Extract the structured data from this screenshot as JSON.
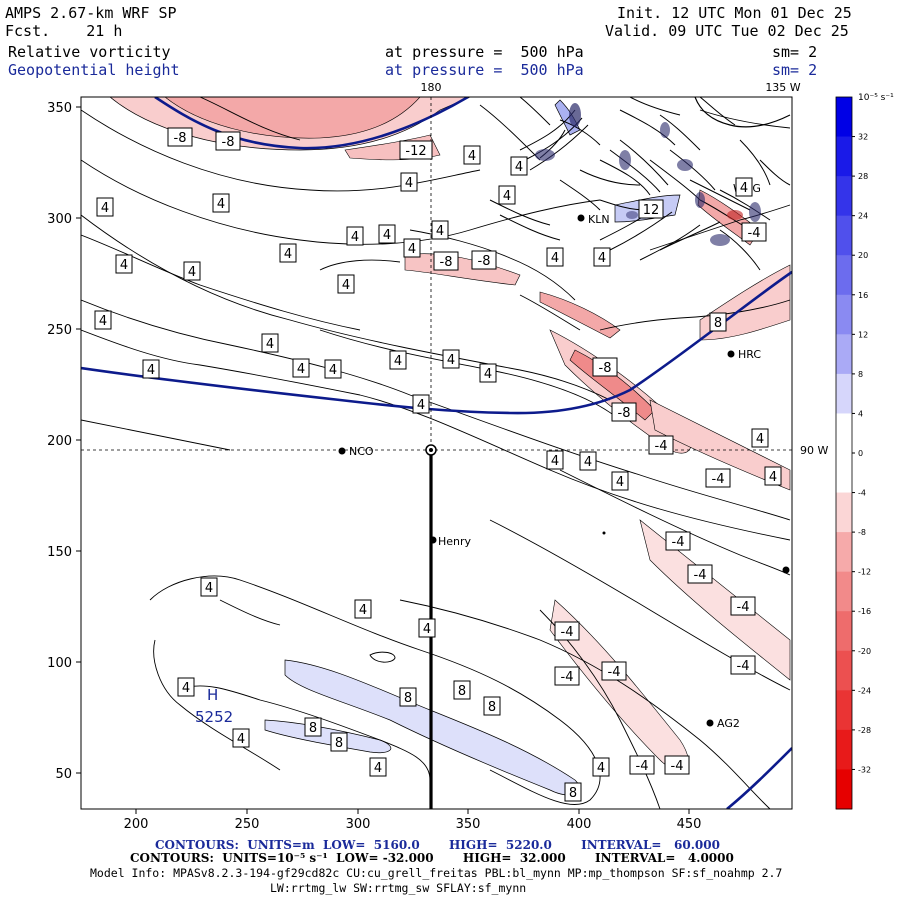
{
  "header": {
    "model": "AMPS 2.67-km WRF SP",
    "forecast": "Fcst.    21 h",
    "init": "Init. 12 UTC Mon 01 Dec 25",
    "valid": "Valid. 09 UTC Tue 02 Dec 25",
    "field1_name": "Relative vorticity",
    "field1_level": "at pressure =  500 hPa",
    "field1_smooth": "sm= 2",
    "field2_name": "Geopotential height",
    "field2_level": "at pressure =  500 hPa",
    "field2_smooth": "sm= 2"
  },
  "map": {
    "lon_top_label": "180",
    "lon_top_right_label": "135 W",
    "lon_right_label": "90 W",
    "x_ticks": [
      "200",
      "250",
      "300",
      "350",
      "400",
      "450"
    ],
    "y_ticks": [
      "350",
      "300",
      "250",
      "200",
      "150",
      "100",
      "50"
    ],
    "stations": [
      {
        "name": "KLN"
      },
      {
        "name": "HRC"
      },
      {
        "name": "NCO"
      },
      {
        "name": "Henry"
      },
      {
        "name": "AG2"
      },
      {
        "name": "WDG"
      }
    ],
    "high_label": "H",
    "high_value": "5252",
    "contour_labels": [
      "4",
      "-8",
      "-12",
      "8",
      "-4",
      "12"
    ],
    "line_colors": {
      "height": "#0d1b8c",
      "vorticity": "#000000"
    }
  },
  "colorbar": {
    "units": "10⁻⁵ s⁻¹",
    "ticks": [
      "32",
      "28",
      "24",
      "20",
      "16",
      "12",
      "8",
      "4",
      "0",
      "-4",
      "-8",
      "-12",
      "-16",
      "-20",
      "-24",
      "-28",
      "-32"
    ],
    "colors": [
      "#0000e6",
      "#1a1ae8",
      "#3434ea",
      "#5050ec",
      "#6c6cee",
      "#8a8af2",
      "#aaaaf6",
      "#d6d6fb",
      "#ffffff",
      "#ffffff",
      "#fbd6d6",
      "#f6aaaa",
      "#f28a8a",
      "#ee6c6c",
      "#ec5050",
      "#ea3434",
      "#e81a1a",
      "#e60000"
    ]
  },
  "footer": {
    "line1_prefix": "CONTOURS:  UNITS=m  LOW=  5160.0",
    "line1_high": "HIGH=  5220.0",
    "line1_interval": "INTERVAL=   60.000",
    "line2_prefix": "CONTOURS:  UNITS=10⁻⁵ s⁻¹  LOW= -32.000",
    "line2_high": "HIGH=  32.000",
    "line2_interval": "INTERVAL=   4.0000",
    "model_info": "Model Info: MPASv8.2.3-194-gf29cd82c CU:cu_grell_freitas PBL:bl_mynn MP:mp_thompson SF:sf_noahmp 2.7",
    "model_info2": "LW:rrtmg_lw SW:rrtmg_sw SFLAY:sf_mynn"
  }
}
